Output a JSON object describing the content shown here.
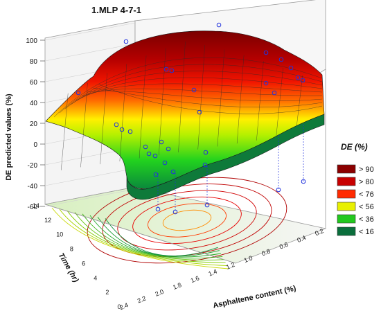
{
  "chart_data": {
    "type": "surface3d",
    "title": "1.MLP 4-7-1",
    "zlabel": "DE predicted values (%)",
    "xlabel": "Asphaltene content (%)",
    "ylabel": "Time (hr)",
    "z_ticks": [
      "100",
      "80",
      "60",
      "40",
      "20",
      "0",
      "-20",
      "-40",
      "-60"
    ],
    "x_ticks": [
      "2.4",
      "2.2",
      "2.0",
      "1.8",
      "1.6",
      "1.4",
      "1.2",
      "1.0",
      "0.8",
      "0.6",
      "0.4",
      "0.2"
    ],
    "y_ticks": [
      "0",
      "2",
      "4",
      "6",
      "8",
      "10",
      "12",
      "14"
    ],
    "zlim": [
      -60,
      100
    ],
    "xlim": [
      0.2,
      2.4
    ],
    "ylim": [
      0,
      14
    ],
    "legend": {
      "title": "DE (%)",
      "position": "right",
      "entries": [
        {
          "label": "> 90",
          "color": "#8b0000"
        },
        {
          "label": "> 80",
          "color": "#c80000"
        },
        {
          "label": "< 76",
          "color": "#ff2a00"
        },
        {
          "label": "< 56",
          "color": "#e8f000"
        },
        {
          "label": "< 36",
          "color": "#22c81e"
        },
        {
          "label": "< 16",
          "color": "#0a6e3c"
        }
      ]
    },
    "grid": true,
    "points_color": "#2233dd"
  }
}
